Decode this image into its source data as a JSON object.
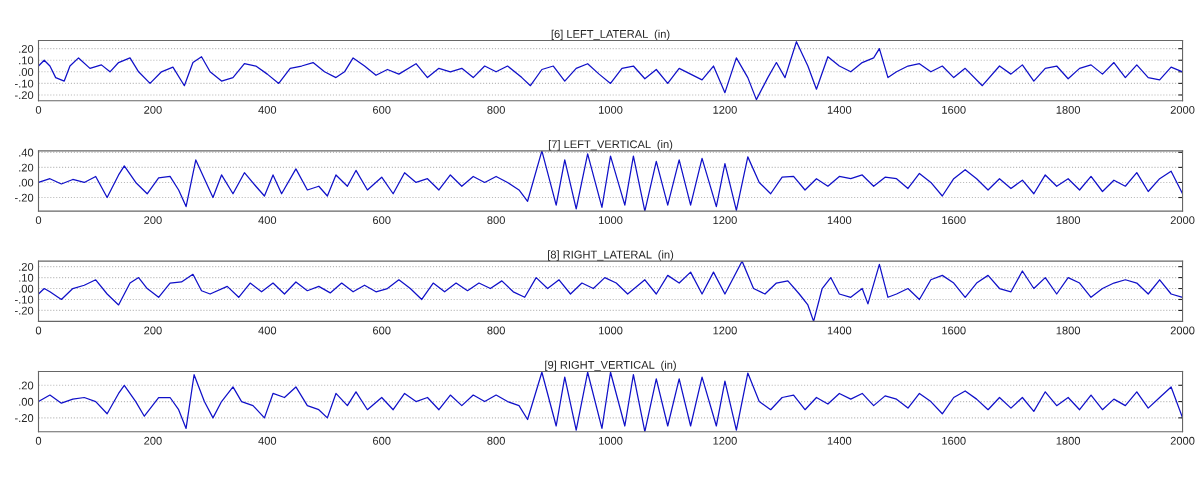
{
  "chart_data": [
    {
      "type": "line",
      "title": "[6] LEFT_LATERAL  (in)",
      "grid": "y",
      "line_style": "solid",
      "xlim": [
        0,
        2000
      ],
      "xticks": [
        0,
        200,
        400,
        600,
        800,
        1000,
        1200,
        1400,
        1600,
        1800,
        2000
      ],
      "ylim": [
        -0.25,
        0.27
      ],
      "yticks": [
        {
          "value": -0.2,
          "label": "-.20"
        },
        {
          "value": -0.1,
          "label": "-.10"
        },
        {
          "value": 0,
          "label": ".00"
        },
        {
          "value": 0.1,
          "label": ".10"
        },
        {
          "value": 0.2,
          "label": ".20"
        }
      ],
      "x": [
        0,
        10,
        20,
        30,
        45,
        55,
        70,
        90,
        110,
        125,
        140,
        160,
        175,
        195,
        215,
        235,
        255,
        270,
        285,
        300,
        320,
        340,
        360,
        380,
        400,
        420,
        440,
        460,
        480,
        500,
        520,
        535,
        550,
        570,
        590,
        610,
        630,
        660,
        680,
        700,
        720,
        740,
        760,
        780,
        800,
        820,
        845,
        860,
        880,
        900,
        920,
        940,
        960,
        980,
        1000,
        1020,
        1040,
        1060,
        1080,
        1100,
        1120,
        1140,
        1160,
        1180,
        1200,
        1220,
        1240,
        1255,
        1275,
        1290,
        1305,
        1325,
        1345,
        1360,
        1380,
        1400,
        1420,
        1440,
        1460,
        1470,
        1485,
        1500,
        1520,
        1540,
        1560,
        1580,
        1600,
        1620,
        1650,
        1680,
        1700,
        1720,
        1740,
        1760,
        1780,
        1800,
        1820,
        1840,
        1860,
        1880,
        1900,
        1920,
        1940,
        1960,
        1980,
        2000
      ],
      "series": [
        {
          "color": "#1010c8",
          "values": [
            0.05,
            0.1,
            0.05,
            -0.05,
            -0.08,
            0.05,
            0.12,
            0.03,
            0.06,
            0.0,
            0.08,
            0.12,
            0.0,
            -0.1,
            0.0,
            0.04,
            -0.12,
            0.08,
            0.13,
            0.0,
            -0.08,
            -0.05,
            0.07,
            0.05,
            -0.02,
            -0.1,
            0.03,
            0.05,
            0.08,
            0.0,
            -0.05,
            0.0,
            0.12,
            0.05,
            -0.03,
            0.02,
            -0.02,
            0.07,
            -0.05,
            0.03,
            0.0,
            0.03,
            -0.05,
            0.05,
            0.0,
            0.05,
            -0.05,
            -0.12,
            0.02,
            0.05,
            -0.08,
            0.03,
            0.07,
            -0.02,
            -0.1,
            0.03,
            0.05,
            -0.06,
            0.02,
            -0.1,
            0.03,
            -0.02,
            -0.07,
            0.05,
            -0.18,
            0.12,
            -0.05,
            -0.24,
            -0.05,
            0.08,
            -0.05,
            0.26,
            0.05,
            -0.15,
            0.13,
            0.05,
            0.0,
            0.08,
            0.12,
            0.2,
            -0.05,
            0.0,
            0.05,
            0.07,
            0.0,
            0.05,
            -0.05,
            0.03,
            -0.12,
            0.05,
            -0.02,
            0.06,
            -0.08,
            0.03,
            0.05,
            -0.06,
            0.03,
            0.06,
            -0.02,
            0.08,
            -0.05,
            0.06,
            -0.05,
            -0.07,
            0.04,
            0.0
          ]
        }
      ]
    },
    {
      "type": "line",
      "title": "[7] LEFT_VERTICAL  (in)",
      "grid": "y",
      "line_style": "solid",
      "xlim": [
        0,
        2000
      ],
      "xticks": [
        0,
        200,
        400,
        600,
        800,
        1000,
        1200,
        1400,
        1600,
        1800,
        2000
      ],
      "ylim": [
        -0.38,
        0.42
      ],
      "yticks": [
        {
          "value": -0.2,
          "label": "-.20"
        },
        {
          "value": 0,
          "label": ".00"
        },
        {
          "value": 0.2,
          "label": ".20"
        },
        {
          "value": 0.4,
          "label": ".40"
        }
      ],
      "x": [
        0,
        20,
        40,
        60,
        80,
        100,
        120,
        140,
        150,
        170,
        190,
        210,
        230,
        245,
        258,
        275,
        290,
        305,
        320,
        340,
        360,
        380,
        395,
        410,
        425,
        450,
        470,
        490,
        505,
        520,
        540,
        555,
        575,
        600,
        620,
        640,
        660,
        680,
        700,
        720,
        740,
        760,
        780,
        800,
        820,
        840,
        855,
        880,
        905,
        920,
        940,
        960,
        985,
        1000,
        1025,
        1040,
        1060,
        1080,
        1100,
        1120,
        1140,
        1160,
        1185,
        1200,
        1220,
        1240,
        1260,
        1280,
        1300,
        1320,
        1340,
        1360,
        1380,
        1400,
        1420,
        1440,
        1460,
        1480,
        1500,
        1520,
        1540,
        1560,
        1580,
        1600,
        1620,
        1640,
        1660,
        1680,
        1700,
        1720,
        1740,
        1760,
        1780,
        1800,
        1820,
        1840,
        1860,
        1880,
        1900,
        1920,
        1940,
        1960,
        1980,
        2000
      ],
      "series": [
        {
          "color": "#1010c8",
          "values": [
            0.0,
            0.05,
            -0.02,
            0.04,
            0.0,
            0.08,
            -0.2,
            0.1,
            0.22,
            0.0,
            -0.15,
            0.06,
            0.08,
            -0.1,
            -0.32,
            0.3,
            0.05,
            -0.2,
            0.1,
            -0.15,
            0.13,
            -0.05,
            -0.18,
            0.1,
            -0.15,
            0.18,
            -0.1,
            -0.05,
            -0.18,
            0.1,
            -0.05,
            0.16,
            -0.1,
            0.07,
            -0.15,
            0.13,
            0.0,
            0.05,
            -0.1,
            0.1,
            -0.05,
            0.08,
            0.0,
            0.08,
            0.0,
            -0.1,
            -0.25,
            0.42,
            -0.3,
            0.3,
            -0.35,
            0.38,
            -0.33,
            0.35,
            -0.3,
            0.35,
            -0.38,
            0.28,
            -0.3,
            0.3,
            -0.3,
            0.32,
            -0.32,
            0.25,
            -0.37,
            0.34,
            0.0,
            -0.15,
            0.07,
            0.08,
            -0.1,
            0.05,
            -0.05,
            0.08,
            0.05,
            0.1,
            -0.05,
            0.07,
            0.05,
            -0.08,
            0.12,
            0.0,
            -0.18,
            0.05,
            0.17,
            0.05,
            -0.1,
            0.05,
            -0.08,
            0.03,
            -0.15,
            0.1,
            -0.05,
            0.05,
            -0.1,
            0.08,
            -0.12,
            0.03,
            -0.05,
            0.13,
            -0.12,
            0.05,
            0.15,
            -0.15
          ]
        }
      ]
    },
    {
      "type": "line",
      "title": "[8] RIGHT_LATERAL  (in)",
      "grid": "y",
      "line_style": "solid",
      "xlim": [
        0,
        2000
      ],
      "xticks": [
        0,
        200,
        400,
        600,
        800,
        1000,
        1200,
        1400,
        1600,
        1800,
        2000
      ],
      "ylim": [
        -0.3,
        0.25
      ],
      "yticks": [
        {
          "value": -0.2,
          "label": "-.20"
        },
        {
          "value": -0.1,
          "label": "-.10"
        },
        {
          "value": 0,
          "label": ".00"
        },
        {
          "value": 0.1,
          "label": ".10"
        },
        {
          "value": 0.2,
          "label": ".20"
        }
      ],
      "x": [
        0,
        10,
        20,
        40,
        60,
        80,
        100,
        120,
        140,
        160,
        175,
        190,
        210,
        230,
        250,
        270,
        285,
        300,
        330,
        350,
        370,
        390,
        410,
        430,
        450,
        470,
        490,
        510,
        530,
        550,
        570,
        590,
        610,
        630,
        650,
        670,
        690,
        710,
        730,
        750,
        770,
        790,
        810,
        830,
        850,
        870,
        890,
        910,
        930,
        950,
        970,
        990,
        1010,
        1030,
        1060,
        1080,
        1100,
        1120,
        1140,
        1160,
        1180,
        1200,
        1230,
        1250,
        1270,
        1290,
        1310,
        1330,
        1345,
        1355,
        1370,
        1385,
        1400,
        1420,
        1440,
        1450,
        1470,
        1485,
        1500,
        1520,
        1540,
        1560,
        1580,
        1600,
        1620,
        1640,
        1660,
        1680,
        1700,
        1720,
        1740,
        1760,
        1780,
        1800,
        1820,
        1840,
        1860,
        1880,
        1900,
        1920,
        1940,
        1960,
        1980,
        2000
      ],
      "series": [
        {
          "color": "#1010c8",
          "values": [
            -0.05,
            0.0,
            -0.03,
            -0.1,
            0.0,
            0.03,
            0.08,
            -0.05,
            -0.15,
            0.05,
            0.1,
            0.0,
            -0.08,
            0.05,
            0.06,
            0.13,
            -0.02,
            -0.05,
            0.02,
            -0.08,
            0.05,
            -0.03,
            0.05,
            -0.05,
            0.06,
            -0.02,
            0.02,
            -0.04,
            0.05,
            -0.03,
            0.03,
            -0.03,
            0.0,
            0.08,
            0.0,
            -0.1,
            0.05,
            -0.03,
            0.05,
            -0.02,
            0.05,
            0.0,
            0.07,
            -0.03,
            -0.08,
            0.1,
            0.0,
            0.08,
            -0.05,
            0.05,
            0.0,
            0.1,
            0.05,
            -0.05,
            0.08,
            -0.05,
            0.12,
            0.05,
            0.15,
            -0.05,
            0.15,
            -0.05,
            0.25,
            0.0,
            -0.05,
            0.05,
            0.07,
            -0.05,
            -0.15,
            -0.3,
            0.0,
            0.1,
            -0.05,
            -0.08,
            0.0,
            -0.14,
            0.22,
            -0.08,
            -0.05,
            0.0,
            -0.1,
            0.08,
            0.12,
            0.05,
            -0.08,
            0.05,
            0.12,
            0.0,
            -0.03,
            0.16,
            0.0,
            0.1,
            -0.05,
            0.1,
            0.05,
            -0.08,
            0.0,
            0.05,
            0.08,
            0.05,
            -0.05,
            0.08,
            -0.05,
            -0.08
          ]
        }
      ]
    },
    {
      "type": "line",
      "title": "[9] RIGHT_VERTICAL  (in)",
      "grid": "y",
      "line_style": "solid",
      "xlim": [
        0,
        2000
      ],
      "xticks": [
        0,
        200,
        400,
        600,
        800,
        1000,
        1200,
        1400,
        1600,
        1800,
        2000
      ],
      "ylim": [
        -0.37,
        0.37
      ],
      "yticks": [
        {
          "value": -0.2,
          "label": "-.20"
        },
        {
          "value": 0,
          "label": ".00"
        },
        {
          "value": 0.2,
          "label": ".20"
        }
      ],
      "x": [
        0,
        20,
        40,
        60,
        80,
        100,
        120,
        140,
        150,
        170,
        185,
        210,
        230,
        245,
        258,
        272,
        290,
        305,
        320,
        340,
        355,
        375,
        395,
        410,
        430,
        450,
        470,
        490,
        505,
        520,
        540,
        555,
        575,
        600,
        620,
        640,
        660,
        680,
        700,
        720,
        740,
        760,
        780,
        800,
        820,
        840,
        855,
        880,
        905,
        920,
        940,
        960,
        985,
        1000,
        1025,
        1040,
        1060,
        1080,
        1100,
        1120,
        1140,
        1160,
        1185,
        1200,
        1220,
        1240,
        1260,
        1280,
        1300,
        1320,
        1340,
        1360,
        1380,
        1400,
        1420,
        1440,
        1460,
        1480,
        1500,
        1520,
        1540,
        1560,
        1580,
        1600,
        1620,
        1640,
        1660,
        1680,
        1700,
        1720,
        1740,
        1760,
        1780,
        1800,
        1820,
        1840,
        1860,
        1880,
        1900,
        1920,
        1940,
        1960,
        1980,
        2000
      ],
      "series": [
        {
          "color": "#1010c8",
          "values": [
            0.0,
            0.08,
            -0.02,
            0.03,
            0.05,
            0.0,
            -0.15,
            0.1,
            0.2,
            0.0,
            -0.18,
            0.05,
            0.05,
            -0.1,
            -0.33,
            0.33,
            0.0,
            -0.2,
            0.0,
            0.18,
            0.0,
            -0.05,
            -0.2,
            0.1,
            0.05,
            0.18,
            -0.05,
            -0.1,
            -0.2,
            0.1,
            -0.05,
            0.12,
            -0.1,
            0.05,
            -0.1,
            0.1,
            0.0,
            0.05,
            -0.1,
            0.08,
            -0.05,
            0.08,
            0.0,
            0.08,
            0.0,
            -0.05,
            -0.22,
            0.36,
            -0.3,
            0.3,
            -0.35,
            0.36,
            -0.33,
            0.36,
            -0.3,
            0.33,
            -0.37,
            0.28,
            -0.3,
            0.28,
            -0.3,
            0.3,
            -0.3,
            0.25,
            -0.35,
            0.35,
            0.0,
            -0.1,
            0.05,
            0.08,
            -0.1,
            0.05,
            -0.03,
            0.1,
            0.03,
            0.1,
            -0.05,
            0.07,
            0.03,
            -0.08,
            0.1,
            0.0,
            -0.15,
            0.05,
            0.13,
            0.03,
            -0.1,
            0.05,
            -0.08,
            0.05,
            -0.12,
            0.12,
            -0.05,
            0.05,
            -0.1,
            0.08,
            -0.1,
            0.03,
            -0.05,
            0.12,
            -0.08,
            0.05,
            0.18,
            -0.2
          ]
        }
      ]
    }
  ]
}
